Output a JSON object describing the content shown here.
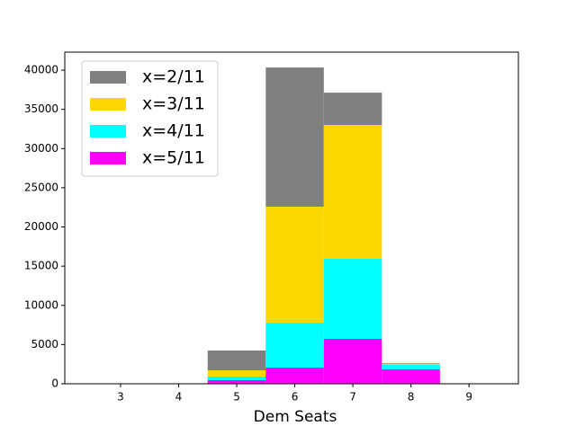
{
  "chart_data": {
    "type": "histogram",
    "x_label": "Dem Seats",
    "bins": [
      2.5,
      3.5,
      4.5,
      5.5,
      6.5,
      7.5,
      8.5,
      9.5
    ],
    "series": [
      {
        "name": "x=2/11",
        "color": "#808080",
        "values": [
          0,
          0,
          2520,
          17760,
          4120,
          80,
          0
        ]
      },
      {
        "name": "x=3/11",
        "color": "#ffd700",
        "values": [
          0,
          0,
          800,
          14790,
          17080,
          150,
          0
        ]
      },
      {
        "name": "x=4/11",
        "color": "#00ffff",
        "values": [
          0,
          0,
          460,
          5730,
          10200,
          580,
          0
        ]
      },
      {
        "name": "x=5/11",
        "color": "#ff00ff",
        "values": [
          0,
          0,
          460,
          2060,
          5730,
          1830,
          0
        ]
      }
    ],
    "stacked": true,
    "xlim": [
      2.04,
      9.85
    ],
    "xticks": [
      3,
      4,
      5,
      6,
      7,
      8,
      9
    ],
    "ylim": [
      0,
      42300
    ],
    "yticks": [
      0,
      5000,
      10000,
      15000,
      20000,
      25000,
      30000,
      35000,
      40000
    ],
    "legend": "upper left"
  }
}
